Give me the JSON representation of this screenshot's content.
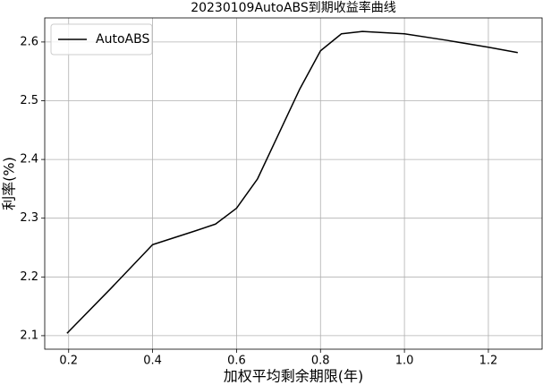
{
  "chart_data": {
    "type": "line",
    "title": "20230109AutoABS到期收益率曲线",
    "xlabel": "加权平均剩余期限(年)",
    "ylabel": "利率(%)",
    "x": [
      0.196,
      0.3,
      0.4,
      0.5,
      0.55,
      0.6,
      0.65,
      0.7,
      0.75,
      0.8,
      0.85,
      0.9,
      1.0,
      1.1,
      1.2,
      1.27
    ],
    "series": [
      {
        "name": "AutoABS",
        "color": "#000000",
        "values": [
          2.104,
          2.18,
          2.255,
          2.278,
          2.29,
          2.317,
          2.367,
          2.443,
          2.519,
          2.585,
          2.614,
          2.618,
          2.614,
          2.603,
          2.591,
          2.582
        ]
      }
    ],
    "xlim": [
      0.143,
      1.328
    ],
    "ylim": [
      2.077,
      2.641
    ],
    "xticks": [
      0.2,
      0.4,
      0.6,
      0.8,
      {
        "value": 1,
        "label": "1.0"
      },
      1.2
    ],
    "yticks": [
      2.1,
      2.2,
      2.3,
      2.4,
      2.5,
      2.6
    ],
    "grid": true,
    "legend": "upper left"
  }
}
